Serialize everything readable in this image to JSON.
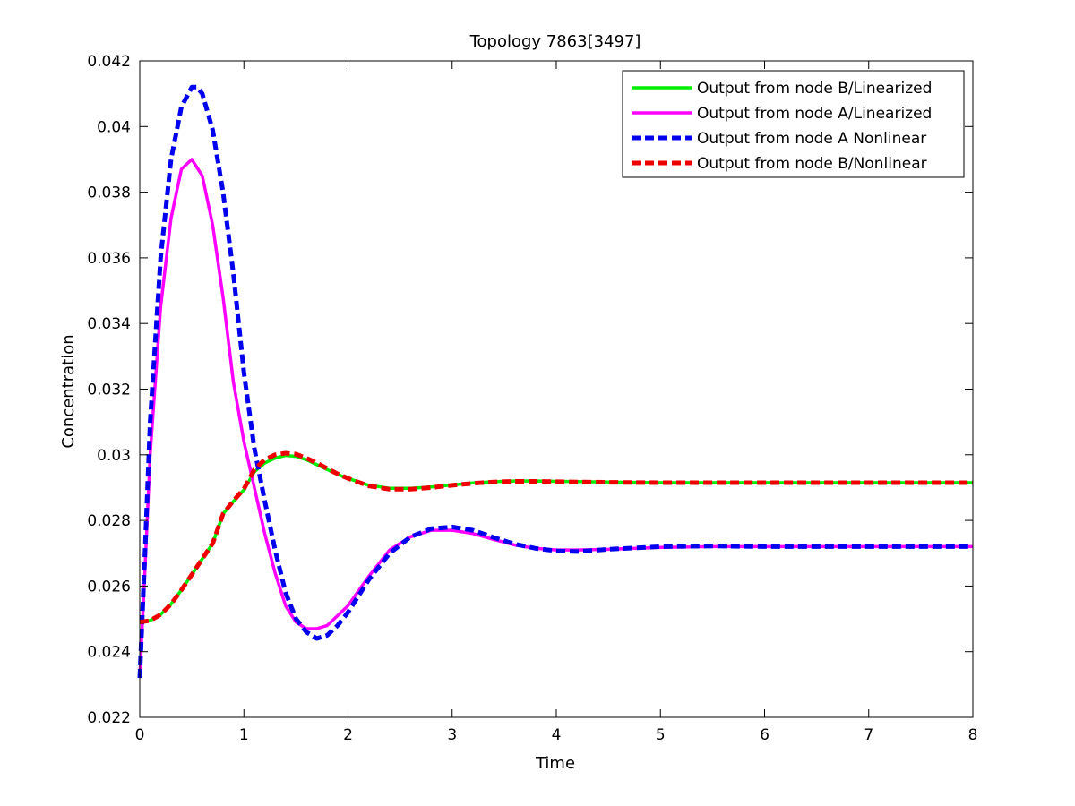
{
  "chart_data": {
    "type": "line",
    "title": "Topology 7863[3497]",
    "xlabel": "Time",
    "ylabel": "Concentration",
    "xlim": [
      0,
      8
    ],
    "ylim": [
      0.022,
      0.042
    ],
    "xticks": [
      0,
      1,
      2,
      3,
      4,
      5,
      6,
      7,
      8
    ],
    "xtick_labels": [
      "0",
      "1",
      "2",
      "3",
      "4",
      "5",
      "6",
      "7",
      "8"
    ],
    "yticks": [
      0.022,
      0.024,
      0.026,
      0.028,
      0.03,
      0.032,
      0.034,
      0.036,
      0.038,
      0.04,
      0.042
    ],
    "ytick_labels": [
      "0.022",
      "0.024",
      "0.026",
      "0.028",
      "0.03",
      "0.032",
      "0.034",
      "0.036",
      "0.038",
      "0.04",
      "0.042"
    ],
    "grid": false,
    "legend_position": "top-right",
    "series": [
      {
        "name": "Output from node B/Linearized",
        "color": "#00ee00",
        "style": "solid",
        "x": [
          0,
          0.1,
          0.2,
          0.3,
          0.4,
          0.5,
          0.6,
          0.7,
          0.8,
          0.9,
          1.0,
          1.1,
          1.2,
          1.3,
          1.4,
          1.5,
          1.6,
          1.7,
          1.8,
          1.9,
          2.0,
          2.2,
          2.4,
          2.6,
          2.8,
          3.0,
          3.2,
          3.4,
          3.6,
          3.8,
          4.0,
          4.5,
          5.0,
          6.0,
          7.0,
          8.0
        ],
        "y": [
          0.0249,
          0.02495,
          0.02513,
          0.02545,
          0.02588,
          0.02635,
          0.02683,
          0.0273,
          0.0282,
          0.02858,
          0.02893,
          0.02948,
          0.02975,
          0.0299,
          0.02998,
          0.02995,
          0.02985,
          0.0297,
          0.02955,
          0.0294,
          0.02928,
          0.02907,
          0.02898,
          0.02898,
          0.02902,
          0.02908,
          0.02914,
          0.02918,
          0.0292,
          0.0292,
          0.02919,
          0.02917,
          0.02915,
          0.02915,
          0.02915,
          0.02915
        ]
      },
      {
        "name": "Output from node A/Linearized",
        "color": "#ff00ff",
        "style": "solid",
        "x": [
          0,
          0.05,
          0.1,
          0.2,
          0.3,
          0.4,
          0.5,
          0.6,
          0.7,
          0.8,
          0.9,
          1.0,
          1.1,
          1.2,
          1.3,
          1.4,
          1.5,
          1.6,
          1.7,
          1.8,
          1.9,
          2.0,
          2.2,
          2.4,
          2.6,
          2.8,
          3.0,
          3.2,
          3.4,
          3.6,
          3.8,
          4.0,
          4.2,
          4.5,
          5.0,
          5.5,
          6.0,
          7.0,
          8.0
        ],
        "y": [
          0.0232,
          0.0265,
          0.03,
          0.0345,
          0.0372,
          0.0387,
          0.039,
          0.0385,
          0.037,
          0.0348,
          0.0322,
          0.0304,
          0.029,
          0.0276,
          0.0264,
          0.0254,
          0.0249,
          0.0247,
          0.0247,
          0.0248,
          0.0251,
          0.0254,
          0.0263,
          0.0271,
          0.0275,
          0.0277,
          0.0277,
          0.0276,
          0.02742,
          0.02725,
          0.02715,
          0.0271,
          0.0271,
          0.02712,
          0.02718,
          0.0272,
          0.0272,
          0.0272,
          0.0272
        ]
      },
      {
        "name": "Output from node A Nonlinear",
        "color": "#0000ee",
        "style": "dashed",
        "x": [
          0,
          0.05,
          0.1,
          0.2,
          0.3,
          0.4,
          0.5,
          0.55,
          0.6,
          0.7,
          0.8,
          0.9,
          1.0,
          1.1,
          1.2,
          1.3,
          1.4,
          1.5,
          1.6,
          1.7,
          1.8,
          1.9,
          2.0,
          2.2,
          2.4,
          2.6,
          2.8,
          3.0,
          3.2,
          3.4,
          3.6,
          3.8,
          4.0,
          4.2,
          4.5,
          5.0,
          5.5,
          6.0,
          7.0,
          8.0
        ],
        "y": [
          0.0232,
          0.027,
          0.031,
          0.036,
          0.039,
          0.0406,
          0.0412,
          0.0412,
          0.041,
          0.0399,
          0.038,
          0.0355,
          0.0325,
          0.0302,
          0.0286,
          0.0271,
          0.0258,
          0.025,
          0.0246,
          0.0244,
          0.0245,
          0.0248,
          0.0252,
          0.0262,
          0.027,
          0.0275,
          0.02775,
          0.0278,
          0.0277,
          0.02748,
          0.02728,
          0.02715,
          0.02707,
          0.02705,
          0.02712,
          0.0272,
          0.02722,
          0.0272,
          0.0272,
          0.0272
        ]
      },
      {
        "name": "Output from node B/Nonlinear",
        "color": "#ee0000",
        "style": "dashed",
        "x": [
          0,
          0.1,
          0.2,
          0.3,
          0.4,
          0.5,
          0.6,
          0.7,
          0.8,
          0.9,
          1.0,
          1.1,
          1.2,
          1.3,
          1.4,
          1.5,
          1.6,
          1.7,
          1.8,
          1.9,
          2.0,
          2.2,
          2.4,
          2.6,
          2.8,
          3.0,
          3.2,
          3.4,
          3.6,
          3.8,
          4.0,
          4.5,
          5.0,
          6.0,
          7.0,
          8.0
        ],
        "y": [
          0.0249,
          0.02495,
          0.02513,
          0.02545,
          0.02588,
          0.02635,
          0.02683,
          0.0273,
          0.0282,
          0.0286,
          0.02896,
          0.02955,
          0.02985,
          0.03,
          0.03005,
          0.03002,
          0.0299,
          0.02975,
          0.02958,
          0.02942,
          0.02928,
          0.02905,
          0.02895,
          0.02895,
          0.029,
          0.02907,
          0.02913,
          0.02917,
          0.02919,
          0.02919,
          0.02918,
          0.02916,
          0.02915,
          0.02915,
          0.02915,
          0.02915
        ]
      }
    ]
  }
}
